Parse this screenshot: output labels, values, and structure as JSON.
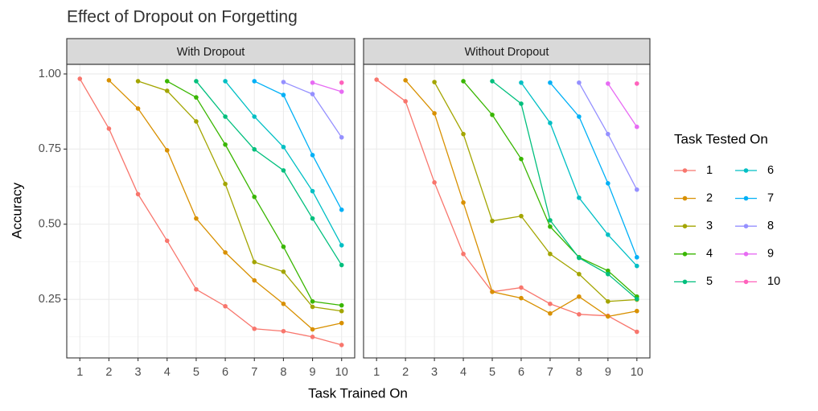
{
  "chart_data": {
    "type": "line",
    "title": "Effect of Dropout on Forgetting",
    "x_label": "Task Trained On",
    "y_label": "Accuracy",
    "legend_title": "Task Tested On",
    "x": [
      1,
      2,
      3,
      4,
      5,
      6,
      7,
      8,
      9,
      10
    ],
    "xlim": [
      0.55,
      10.45
    ],
    "xticks": [
      1,
      2,
      3,
      4,
      5,
      6,
      7,
      8,
      9,
      10
    ],
    "ylim": [
      0.055,
      1.032
    ],
    "yticks": [
      {
        "value": 0.25,
        "label": "0.25"
      },
      {
        "value": 0.5,
        "label": "0.50"
      },
      {
        "value": 0.75,
        "label": "0.75"
      },
      {
        "value": 1,
        "label": "1.00"
      }
    ],
    "y_minor_grid": [
      0.125,
      0.375,
      0.625,
      0.875
    ],
    "grid": true,
    "legend_position": "right",
    "series": [
      {
        "name": "1",
        "color": "#F8766D"
      },
      {
        "name": "2",
        "color": "#D89000"
      },
      {
        "name": "3",
        "color": "#A3A500"
      },
      {
        "name": "4",
        "color": "#39B600"
      },
      {
        "name": "5",
        "color": "#00BF7D"
      },
      {
        "name": "6",
        "color": "#00BFC4"
      },
      {
        "name": "7",
        "color": "#00B0F6"
      },
      {
        "name": "8",
        "color": "#9590FF"
      },
      {
        "name": "9",
        "color": "#E76BF3"
      },
      {
        "name": "10",
        "color": "#FF62BC"
      }
    ],
    "panels": [
      {
        "title": "With Dropout",
        "values": [
          [
            0.984,
            0.818,
            0.6,
            0.445,
            0.283,
            0.227,
            0.152,
            0.144,
            0.125,
            0.098
          ],
          [
            null,
            0.979,
            0.885,
            0.746,
            0.519,
            0.406,
            0.313,
            0.235,
            0.15,
            0.171
          ],
          [
            null,
            null,
            0.976,
            0.944,
            0.842,
            0.634,
            0.374,
            0.342,
            0.225,
            0.211
          ],
          [
            null,
            null,
            null,
            0.976,
            0.922,
            0.765,
            0.591,
            0.425,
            0.243,
            0.23
          ],
          [
            null,
            null,
            null,
            null,
            0.976,
            0.858,
            0.749,
            0.679,
            0.519,
            0.364
          ],
          [
            null,
            null,
            null,
            null,
            null,
            0.976,
            0.858,
            0.757,
            0.61,
            0.43
          ],
          [
            null,
            null,
            null,
            null,
            null,
            null,
            0.976,
            0.93,
            0.73,
            0.548
          ],
          [
            null,
            null,
            null,
            null,
            null,
            null,
            null,
            0.973,
            0.933,
            0.789
          ],
          [
            null,
            null,
            null,
            null,
            null,
            null,
            null,
            null,
            0.971,
            0.941
          ],
          [
            null,
            null,
            null,
            null,
            null,
            null,
            null,
            null,
            null,
            0.971
          ]
        ]
      },
      {
        "title": "Without Dropout",
        "values": [
          [
            0.981,
            0.909,
            0.639,
            0.401,
            0.275,
            0.289,
            0.235,
            0.2,
            0.195,
            0.142
          ],
          [
            null,
            0.979,
            0.869,
            0.572,
            0.275,
            0.254,
            0.203,
            0.259,
            0.193,
            0.211
          ],
          [
            null,
            null,
            0.973,
            0.8,
            0.511,
            0.527,
            0.401,
            0.334,
            0.243,
            0.249
          ],
          [
            null,
            null,
            null,
            0.976,
            0.864,
            0.717,
            0.492,
            0.39,
            0.345,
            0.259
          ],
          [
            null,
            null,
            null,
            null,
            0.976,
            0.901,
            0.513,
            0.388,
            0.334,
            0.251
          ],
          [
            null,
            null,
            null,
            null,
            null,
            0.971,
            0.837,
            0.588,
            0.465,
            0.361
          ],
          [
            null,
            null,
            null,
            null,
            null,
            null,
            0.971,
            0.858,
            0.636,
            0.39
          ],
          [
            null,
            null,
            null,
            null,
            null,
            null,
            null,
            0.971,
            0.8,
            0.615
          ],
          [
            null,
            null,
            null,
            null,
            null,
            null,
            null,
            null,
            0.968,
            0.824
          ],
          [
            null,
            null,
            null,
            null,
            null,
            null,
            null,
            null,
            null,
            0.968
          ]
        ]
      }
    ]
  }
}
